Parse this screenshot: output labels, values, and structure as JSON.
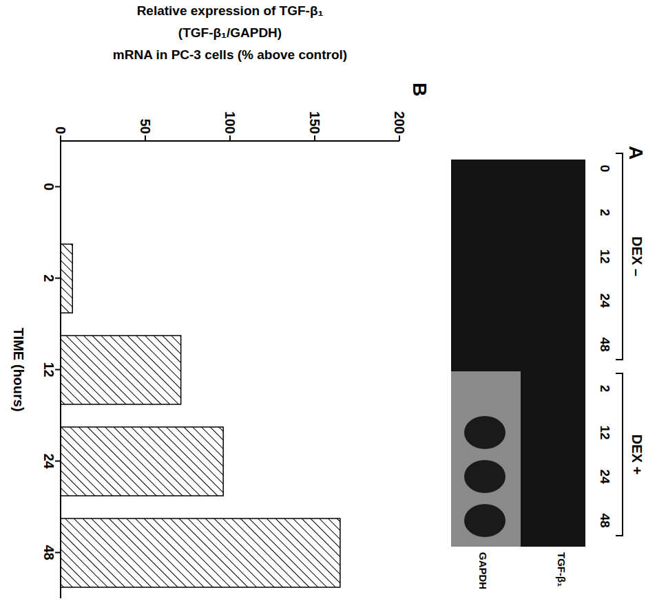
{
  "chart_data": {
    "type": "bar",
    "panel": "B",
    "ylabel": [
      "Relative expression of TGF-β₁",
      "(TGF-β₁/GAPDH)",
      "mRNA in PC-3 cells (% above control)"
    ],
    "xlabel": "TIME (hours)",
    "categories": [
      "0",
      "2",
      "12",
      "24",
      "48"
    ],
    "values": [
      0,
      7,
      71,
      96,
      165
    ],
    "color": "#000000",
    "ylim": [
      0,
      200
    ],
    "yticks": [
      0,
      50,
      100,
      150,
      200
    ],
    "grid": false
  },
  "panel_a": {
    "label": "A",
    "groups": [
      {
        "label": "DEX –",
        "lanes": [
          "0",
          "2",
          "12",
          "24",
          "48"
        ]
      },
      {
        "label": "DEX +",
        "lanes": [
          "2",
          "12",
          "24",
          "48"
        ]
      }
    ],
    "rows": [
      "TGF-β₁",
      "GAPDH"
    ]
  }
}
